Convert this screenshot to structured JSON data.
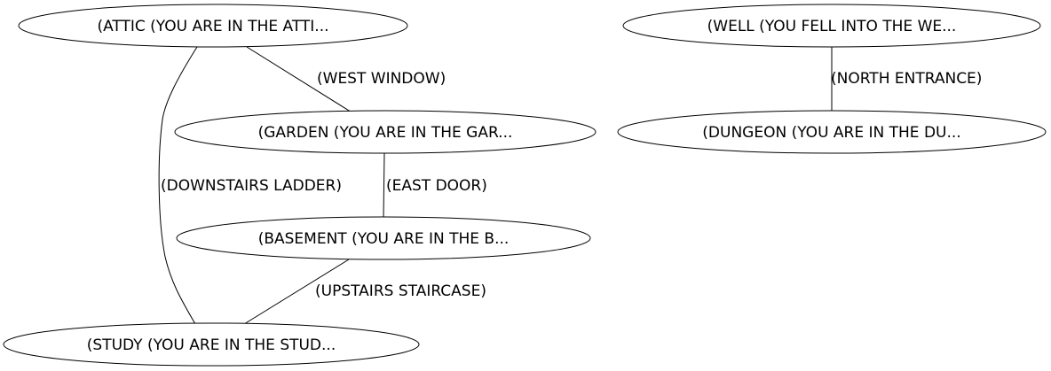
{
  "nodes": [
    {
      "id": "attic",
      "label": "(ATTIC (YOU ARE IN THE ATTI..."
    },
    {
      "id": "garden",
      "label": "(GARDEN (YOU ARE IN THE GAR..."
    },
    {
      "id": "basement",
      "label": "(BASEMENT (YOU ARE IN THE B..."
    },
    {
      "id": "study",
      "label": "(STUDY (YOU ARE IN THE STUD..."
    },
    {
      "id": "well",
      "label": "(WELL (YOU FELL INTO THE WE..."
    },
    {
      "id": "dungeon",
      "label": "(DUNGEON (YOU ARE IN THE DU..."
    }
  ],
  "edges": [
    {
      "id": "west-window",
      "from": "attic",
      "to": "garden",
      "label": "(WEST WINDOW)"
    },
    {
      "id": "downstairs-ladder",
      "from": "attic",
      "to": "study",
      "label": "(DOWNSTAIRS LADDER)"
    },
    {
      "id": "east-door",
      "from": "garden",
      "to": "basement",
      "label": "(EAST DOOR)"
    },
    {
      "id": "upstairs-staircase",
      "from": "basement",
      "to": "study",
      "label": "(UPSTAIRS STAIRCASE)"
    },
    {
      "id": "north-entrance",
      "from": "well",
      "to": "dungeon",
      "label": "(NORTH ENTRANCE)"
    }
  ]
}
